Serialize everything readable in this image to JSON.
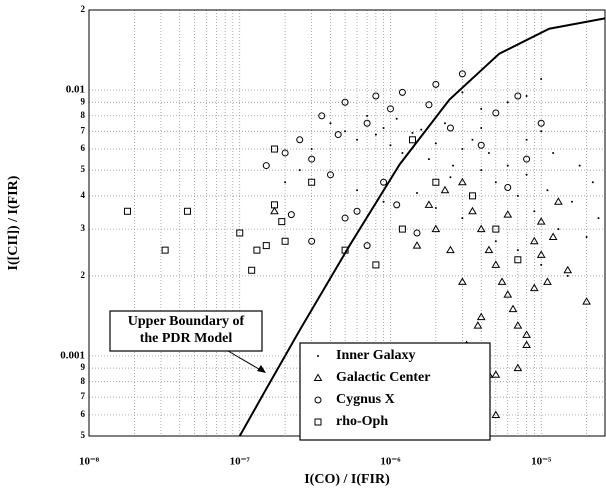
{
  "chart_data": {
    "type": "scatter",
    "x_label": "I(CO) / I(FIR)",
    "y_label": "I([CII]) / I(FIR)",
    "log_x": true,
    "log_y": true,
    "grid": true,
    "xlim": [
      1e-08,
      2.65e-05
    ],
    "ylim": [
      0.0005,
      0.02
    ],
    "xticks": [
      {
        "value": 1e-08,
        "label": "10⁻⁸"
      },
      {
        "value": 1e-07,
        "label": "10⁻⁷"
      },
      {
        "value": 1e-06,
        "label": "10⁻⁶"
      },
      {
        "value": 1e-05,
        "label": "10⁻⁵"
      }
    ],
    "xminor": [
      2e-08,
      3e-08,
      4e-08,
      5e-08,
      6e-08,
      7e-08,
      8e-08,
      9e-08,
      2e-07,
      3e-07,
      4e-07,
      5e-07,
      6e-07,
      7e-07,
      8e-07,
      9e-07,
      2e-06,
      3e-06,
      4e-06,
      5e-06,
      6e-06,
      7e-06,
      8e-06,
      9e-06,
      2e-05
    ],
    "yticks": [
      {
        "value": 0.0005,
        "label": "5"
      },
      {
        "value": 0.0006,
        "label": "6"
      },
      {
        "value": 0.0007,
        "label": "7"
      },
      {
        "value": 0.0008,
        "label": "8"
      },
      {
        "value": 0.0009,
        "label": "9"
      },
      0.001,
      {
        "value": 0.002,
        "label": "2"
      },
      {
        "value": 0.003,
        "label": "3"
      },
      {
        "value": 0.004,
        "label": "4"
      },
      {
        "value": 0.005,
        "label": "5"
      },
      {
        "value": 0.006,
        "label": "6"
      },
      {
        "value": 0.007,
        "label": "7"
      },
      {
        "value": 0.008,
        "label": "8"
      },
      {
        "value": 0.009,
        "label": "9"
      },
      0.01,
      {
        "value": 0.02,
        "label": "2"
      }
    ],
    "model_curve": {
      "color": "#000000",
      "x": [
        1e-07,
        1.47e-07,
        2.5e-07,
        5.35e-07,
        1.15e-06,
        2.46e-06,
        5.27e-06,
        1.13e-05,
        2.65e-05
      ],
      "values": [
        0.0005,
        0.000737,
        0.00125,
        0.0026,
        0.00525,
        0.0092,
        0.0137,
        0.017,
        0.0186
      ]
    },
    "annotation": {
      "lines": [
        "Upper Boundary of",
        "the PDR Model"
      ]
    },
    "series": [
      {
        "name": "Inner Galaxy",
        "color": "#000000",
        "marker": "dot",
        "x": [
          3e-07,
          4e-07,
          5e-07,
          6e-07,
          7e-07,
          8e-07,
          9e-07,
          1e-06,
          1.1e-06,
          1.2e-06,
          1.4e-06,
          1.6e-06,
          1.8e-06,
          2e-06,
          2.3e-06,
          2.6e-06,
          3e-06,
          3.5e-06,
          4e-06,
          4.5e-06,
          5e-06,
          6e-06,
          7e-06,
          8e-06,
          9e-06,
          1.1e-05,
          1.3e-05,
          1.6e-05,
          2e-05,
          2.4e-05,
          4e-06,
          6e-06,
          8e-06,
          1e-05,
          3e-06,
          5e-06,
          7e-06,
          1e-05,
          1.5e-05,
          2e-07,
          2.5e-07,
          6e-07,
          9e-07,
          1.5e-06,
          2e-06,
          2.5e-06,
          3e-06,
          1.2e-05,
          1.8e-05,
          2.2e-05,
          8e-06,
          1e-05,
          4e-06
        ],
        "values": [
          0.006,
          0.0075,
          0.007,
          0.0065,
          0.008,
          0.0068,
          0.0072,
          0.0062,
          0.0078,
          0.0058,
          0.0069,
          0.0071,
          0.0055,
          0.0063,
          0.0075,
          0.0052,
          0.006,
          0.0065,
          0.005,
          0.0058,
          0.0045,
          0.0052,
          0.004,
          0.0048,
          0.0035,
          0.0042,
          0.003,
          0.0038,
          0.0028,
          0.0033,
          0.0085,
          0.009,
          0.0095,
          0.011,
          0.0098,
          0.0027,
          0.0025,
          0.0022,
          0.002,
          0.0045,
          0.005,
          0.0042,
          0.0038,
          0.0041,
          0.0036,
          0.0047,
          0.0033,
          0.0058,
          0.0052,
          0.0045,
          0.0065,
          0.007,
          0.0072
        ]
      },
      {
        "name": "Galactic Center",
        "color": "#000000",
        "marker": "triangle",
        "x": [
          3e-06,
          3.5e-06,
          4e-06,
          4.5e-06,
          5e-06,
          5.5e-06,
          6e-06,
          6.5e-06,
          7e-06,
          8e-06,
          9e-06,
          1e-05,
          1.2e-05,
          1.5e-05,
          2e-05,
          4e-06,
          4.5e-06,
          5e-06,
          4.2e-06,
          3.8e-06,
          5e-06,
          7e-06,
          8e-06,
          1e-05,
          1.3e-05,
          1.8e-06,
          2e-06,
          2.5e-06,
          1.5e-06,
          1.7e-07,
          2.3e-06,
          6e-06,
          9e-06,
          1.1e-05,
          3e-06,
          3.2e-06
        ],
        "values": [
          0.0045,
          0.0035,
          0.003,
          0.0025,
          0.0022,
          0.0019,
          0.0017,
          0.0015,
          0.0013,
          0.0011,
          0.0018,
          0.0024,
          0.0028,
          0.0021,
          0.0016,
          0.0014,
          0.00085,
          0.00085,
          0.0007,
          0.0013,
          0.0006,
          0.0009,
          0.0012,
          0.0032,
          0.0038,
          0.0037,
          0.003,
          0.0025,
          0.0026,
          0.0035,
          0.0042,
          0.0034,
          0.0027,
          0.0019,
          0.0019,
          0.0011
        ]
      },
      {
        "name": "Cygnus X",
        "color": "#000000",
        "marker": "circle",
        "x": [
          1.5e-07,
          2e-07,
          2.5e-07,
          3e-07,
          3.5e-07,
          4e-07,
          4.5e-07,
          5e-07,
          6e-07,
          7e-07,
          8e-07,
          9e-07,
          1e-06,
          1.2e-06,
          1.5e-06,
          1.8e-06,
          2e-06,
          2.5e-06,
          3e-06,
          4e-06,
          5e-06,
          6e-06,
          7e-06,
          8e-06,
          1e-05,
          3e-07,
          5e-07,
          7e-07,
          1.1e-06,
          2.2e-07
        ],
        "values": [
          0.0052,
          0.0058,
          0.0065,
          0.0055,
          0.008,
          0.0048,
          0.0068,
          0.009,
          0.0035,
          0.0075,
          0.0095,
          0.0045,
          0.0085,
          0.0098,
          0.0029,
          0.0088,
          0.0105,
          0.0072,
          0.0115,
          0.0062,
          0.0082,
          0.0043,
          0.0095,
          0.0055,
          0.0075,
          0.0027,
          0.0033,
          0.0026,
          0.0037,
          0.0034
        ]
      },
      {
        "name": "rho-Oph",
        "color": "#000000",
        "marker": "square",
        "x": [
          1.8e-08,
          3.2e-08,
          4.5e-08,
          1e-07,
          1.2e-07,
          1.3e-07,
          1.5e-07,
          1.7e-07,
          1.7e-07,
          1.9e-07,
          2e-07,
          3e-07,
          5e-07,
          8e-07,
          1.2e-06,
          1.4e-06,
          2e-06,
          3.5e-06,
          5e-06,
          7e-06
        ],
        "values": [
          0.0035,
          0.0025,
          0.0035,
          0.0029,
          0.0021,
          0.0025,
          0.0026,
          0.0037,
          0.006,
          0.0032,
          0.0027,
          0.0045,
          0.0025,
          0.0022,
          0.003,
          0.0065,
          0.0045,
          0.004,
          0.003,
          0.0023
        ]
      }
    ]
  }
}
